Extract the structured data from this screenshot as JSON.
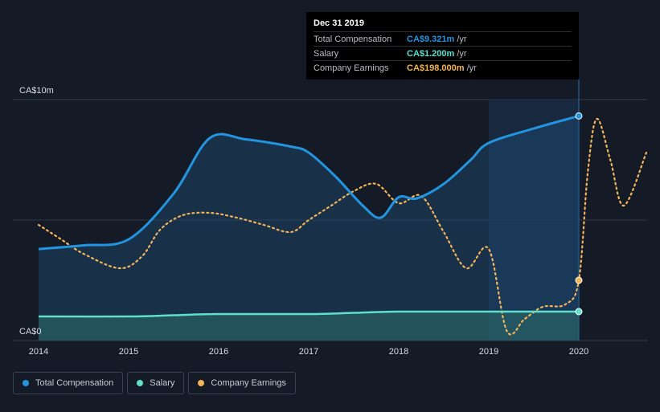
{
  "chart_data": {
    "type": "line",
    "y_labels": [
      "CA$10m",
      "CA$0"
    ],
    "ylim": [
      0,
      10
    ],
    "x_ticks": [
      "2014",
      "2015",
      "2016",
      "2017",
      "2018",
      "2019",
      "2020"
    ],
    "series": [
      {
        "name": "Total Compensation",
        "color": "#2394df",
        "x": [
          2014.0,
          2014.5,
          2015.0,
          2015.5,
          2015.9,
          2016.3,
          2016.8,
          2017.0,
          2017.3,
          2017.6,
          2017.8,
          2018.0,
          2018.2,
          2018.5,
          2018.8,
          2019.0,
          2019.5,
          2020.0
        ],
        "y": [
          3.8,
          3.95,
          4.2,
          6.1,
          8.4,
          8.35,
          8.05,
          7.8,
          6.8,
          5.6,
          5.1,
          5.95,
          5.9,
          6.5,
          7.5,
          8.2,
          8.8,
          9.321
        ]
      },
      {
        "name": "Salary",
        "color": "#5fe0cd",
        "x": [
          2014.0,
          2015.0,
          2015.5,
          2016.0,
          2017.0,
          2017.5,
          2018.0,
          2019.0,
          2020.0
        ],
        "y": [
          1.0,
          1.0,
          1.05,
          1.1,
          1.1,
          1.15,
          1.2,
          1.2,
          1.2
        ]
      },
      {
        "name": "Company Earnings",
        "color": "#f4b55a",
        "x": [
          2014.0,
          2014.25,
          2014.5,
          2014.9,
          2015.15,
          2015.35,
          2015.6,
          2015.9,
          2016.2,
          2016.5,
          2016.8,
          2017.0,
          2017.25,
          2017.5,
          2017.75,
          2018.0,
          2018.25,
          2018.5,
          2018.75,
          2019.0,
          2019.2,
          2019.4,
          2019.6,
          2019.85,
          2020.0,
          2020.1,
          2020.2,
          2020.35,
          2020.5,
          2020.75
        ],
        "y": [
          4.8,
          4.2,
          3.6,
          3.0,
          3.5,
          4.6,
          5.2,
          5.3,
          5.1,
          4.8,
          4.5,
          5.0,
          5.6,
          6.2,
          6.5,
          5.7,
          6.0,
          4.5,
          3.0,
          3.8,
          0.4,
          0.9,
          1.4,
          1.5,
          2.5,
          7.0,
          9.2,
          7.5,
          5.6,
          7.8
        ]
      }
    ],
    "highlight": {
      "from": 2019.0,
      "to": 2020.0
    },
    "tooltip": {
      "date": "Dec 31 2019",
      "rows": [
        {
          "label": "Total Compensation",
          "value": "CA$9.321m",
          "unit": "/yr",
          "color": "#2394df"
        },
        {
          "label": "Salary",
          "value": "CA$1.200m",
          "unit": "/yr",
          "color": "#5fe0cd"
        },
        {
          "label": "Company Earnings",
          "value": "CA$198.000m",
          "unit": "/yr",
          "color": "#f4b55a"
        }
      ]
    },
    "legend": [
      {
        "label": "Total Compensation",
        "color": "#2394df"
      },
      {
        "label": "Salary",
        "color": "#5fe0cd"
      },
      {
        "label": "Company Earnings",
        "color": "#f4b55a"
      }
    ]
  }
}
